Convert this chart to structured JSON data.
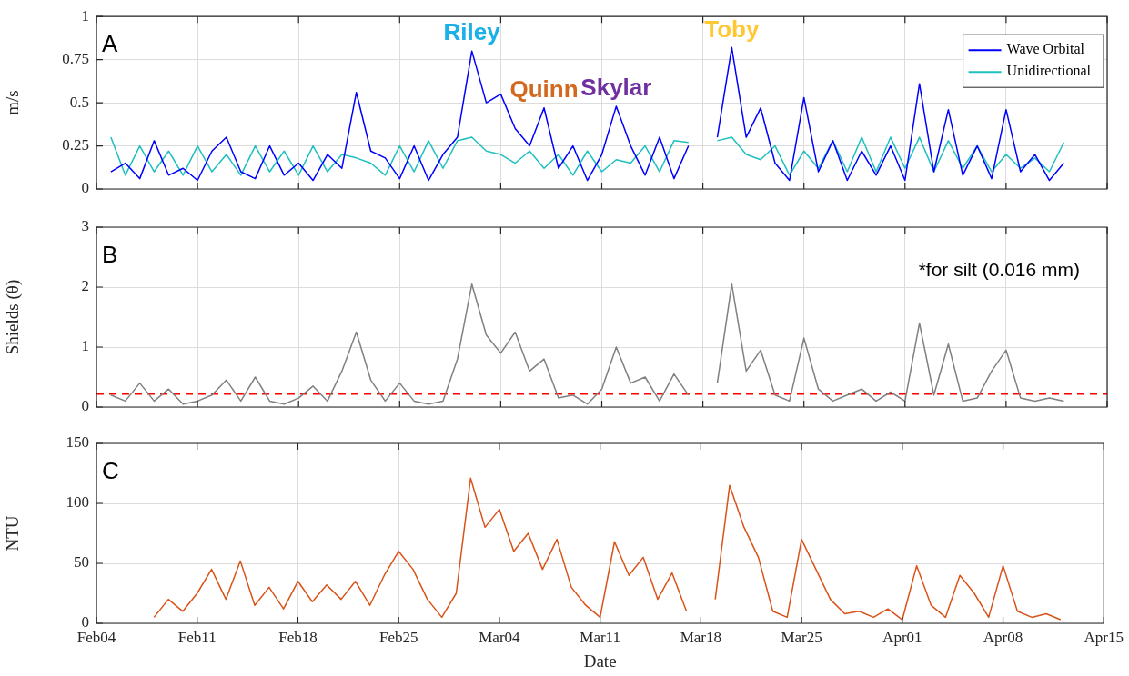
{
  "chart_data": [
    {
      "type": "line",
      "ylabel": "m/s",
      "x": [
        "--02-05",
        "--02-06",
        "--02-07",
        "--02-08",
        "--02-09",
        "--02-10",
        "--02-11",
        "--02-12",
        "--02-13",
        "--02-14",
        "--02-15",
        "--02-16",
        "--02-17",
        "--02-18",
        "--02-19",
        "--02-20",
        "--02-21",
        "--02-22",
        "--02-23",
        "--02-24",
        "--02-25",
        "--02-26",
        "--02-27",
        "--02-28",
        "--03-01",
        "--03-02",
        "--03-03",
        "--03-04",
        "--03-05",
        "--03-06",
        "--03-07",
        "--03-08",
        "--03-09",
        "--03-10",
        "--03-11",
        "--03-12",
        "--03-13",
        "--03-14",
        "--03-15",
        "--03-16",
        "--03-17",
        "--03-18",
        "--03-19",
        "--03-20",
        "--03-21",
        "--03-22",
        "--03-23",
        "--03-24",
        "--03-25",
        "--03-26",
        "--03-27",
        "--03-28",
        "--03-29",
        "--03-30",
        "--03-31",
        "--04-01",
        "--04-02",
        "--04-03",
        "--04-04",
        "--04-05",
        "--04-06",
        "--04-07",
        "--04-08",
        "--04-09",
        "--04-10",
        "--04-11",
        "--04-12"
      ],
      "series": [
        {
          "name": "Wave Orbital",
          "color": "#0000ff",
          "values": [
            0.1,
            0.15,
            0.06,
            0.28,
            0.08,
            0.12,
            0.05,
            0.22,
            0.3,
            0.1,
            0.06,
            0.25,
            0.08,
            0.15,
            0.05,
            0.2,
            0.12,
            0.56,
            0.22,
            0.18,
            0.06,
            0.25,
            0.05,
            0.2,
            0.3,
            0.8,
            0.5,
            0.55,
            0.35,
            0.25,
            0.47,
            0.12,
            0.25,
            0.05,
            0.2,
            0.48,
            0.25,
            0.08,
            0.3,
            0.06,
            0.25,
            null,
            0.3,
            0.82,
            0.3,
            0.47,
            0.15,
            0.05,
            0.53,
            0.1,
            0.28,
            0.05,
            0.22,
            0.08,
            0.25,
            0.05,
            0.61,
            0.1,
            0.46,
            0.08,
            0.25,
            0.06,
            0.46,
            0.1,
            0.2,
            0.05,
            0.15
          ]
        },
        {
          "name": "Unidirectional",
          "color": "#20bfbf",
          "values": [
            0.3,
            0.08,
            0.25,
            0.1,
            0.22,
            0.08,
            0.25,
            0.1,
            0.2,
            0.08,
            0.25,
            0.1,
            0.22,
            0.08,
            0.25,
            0.1,
            0.2,
            0.18,
            0.15,
            0.08,
            0.25,
            0.1,
            0.28,
            0.12,
            0.28,
            0.3,
            0.22,
            0.2,
            0.15,
            0.22,
            0.12,
            0.2,
            0.08,
            0.22,
            0.1,
            0.17,
            0.15,
            0.25,
            0.1,
            0.28,
            0.27,
            null,
            0.28,
            0.3,
            0.2,
            0.17,
            0.25,
            0.08,
            0.22,
            0.12,
            0.28,
            0.1,
            0.3,
            0.1,
            0.3,
            0.12,
            0.3,
            0.1,
            0.28,
            0.12,
            0.25,
            0.1,
            0.2,
            0.12,
            0.18,
            0.1,
            0.27
          ]
        }
      ],
      "xlim": [
        "--02-04",
        "--04-15"
      ],
      "xticks": [
        {
          "value": "--02-04",
          "label": null
        },
        {
          "value": "--02-11",
          "label": null
        },
        {
          "value": "--02-18",
          "label": null
        },
        {
          "value": "--02-25",
          "label": null
        },
        {
          "value": "--03-04",
          "label": null
        },
        {
          "value": "--03-11",
          "label": null
        },
        {
          "value": "--03-18",
          "label": null
        },
        {
          "value": "--03-25",
          "label": null
        },
        {
          "value": "--04-01",
          "label": null
        },
        {
          "value": "--04-08",
          "label": null
        },
        {
          "value": "--04-15",
          "label": null
        }
      ],
      "ylim": [
        0,
        1
      ],
      "yticks": [
        0,
        0.25,
        0.5,
        0.75,
        1
      ],
      "grid": true,
      "legend": "top right",
      "tick_labels": "y",
      "annotations": [
        "A",
        {
          "text": "Riley",
          "x": "--03-02",
          "y": 0.8
        },
        {
          "text": "Quinn",
          "x": "--03-07",
          "y": 0.47
        },
        {
          "text": "Skylar",
          "x": "--03-12",
          "y": 0.48
        },
        {
          "text": "Toby",
          "x": "--03-20",
          "y": 0.82
        }
      ]
    },
    {
      "type": "line",
      "ylabel": "Shields (θ)",
      "x": [
        "--02-05",
        "--02-06",
        "--02-07",
        "--02-08",
        "--02-09",
        "--02-10",
        "--02-11",
        "--02-12",
        "--02-13",
        "--02-14",
        "--02-15",
        "--02-16",
        "--02-17",
        "--02-18",
        "--02-19",
        "--02-20",
        "--02-21",
        "--02-22",
        "--02-23",
        "--02-24",
        "--02-25",
        "--02-26",
        "--02-27",
        "--02-28",
        "--03-01",
        "--03-02",
        "--03-03",
        "--03-04",
        "--03-05",
        "--03-06",
        "--03-07",
        "--03-08",
        "--03-09",
        "--03-10",
        "--03-11",
        "--03-12",
        "--03-13",
        "--03-14",
        "--03-15",
        "--03-16",
        "--03-17",
        "--03-18",
        "--03-19",
        "--03-20",
        "--03-21",
        "--03-22",
        "--03-23",
        "--03-24",
        "--03-25",
        "--03-26",
        "--03-27",
        "--03-28",
        "--03-29",
        "--03-30",
        "--03-31",
        "--04-01",
        "--04-02",
        "--04-03",
        "--04-04",
        "--04-05",
        "--04-06",
        "--04-07",
        "--04-08",
        "--04-09",
        "--04-10",
        "--04-11",
        "--04-12"
      ],
      "series": [
        {
          "color": "#808080",
          "values": [
            0.2,
            0.1,
            0.4,
            0.1,
            0.3,
            0.05,
            0.1,
            0.2,
            0.45,
            0.1,
            0.5,
            0.1,
            0.05,
            0.15,
            0.35,
            0.1,
            0.6,
            1.25,
            0.45,
            0.1,
            0.4,
            0.1,
            0.05,
            0.1,
            0.8,
            2.05,
            1.2,
            0.9,
            1.25,
            0.6,
            0.8,
            0.15,
            0.2,
            0.05,
            0.3,
            1.0,
            0.4,
            0.5,
            0.1,
            0.55,
            0.2,
            null,
            0.4,
            2.05,
            0.6,
            0.95,
            0.2,
            0.1,
            1.15,
            0.3,
            0.1,
            0.2,
            0.3,
            0.1,
            0.25,
            0.1,
            1.4,
            0.2,
            1.05,
            0.1,
            0.15,
            0.6,
            0.95,
            0.15,
            0.1,
            0.15,
            0.1
          ]
        }
      ],
      "xlim": [
        "--02-04",
        "--04-15"
      ],
      "xticks": [
        {
          "value": "--02-04",
          "label": null
        },
        {
          "value": "--02-11",
          "label": null
        },
        {
          "value": "--02-18",
          "label": null
        },
        {
          "value": "--02-25",
          "label": null
        },
        {
          "value": "--03-04",
          "label": null
        },
        {
          "value": "--03-11",
          "label": null
        },
        {
          "value": "--03-18",
          "label": null
        },
        {
          "value": "--03-25",
          "label": null
        },
        {
          "value": "--04-01",
          "label": null
        },
        {
          "value": "--04-08",
          "label": null
        },
        {
          "value": "--04-15",
          "label": null
        }
      ],
      "ylim": [
        0,
        3
      ],
      "yticks": [
        0,
        1,
        2,
        3
      ],
      "grid": true,
      "tick_labels": "y",
      "ref_lines": [
        {
          "axis": "y",
          "value": 0.22,
          "color": "#ff0000",
          "line_style": "dashed"
        }
      ],
      "annotations": [
        "B",
        "*for silt (0.016 mm)"
      ]
    },
    {
      "type": "line",
      "ylabel": "NTU",
      "xlabel": "Date",
      "x": [
        "--02-08",
        "--02-09",
        "--02-10",
        "--02-11",
        "--02-12",
        "--02-13",
        "--02-14",
        "--02-15",
        "--02-16",
        "--02-17",
        "--02-18",
        "--02-19",
        "--02-20",
        "--02-21",
        "--02-22",
        "--02-23",
        "--02-24",
        "--02-25",
        "--02-26",
        "--02-27",
        "--02-28",
        "--03-01",
        "--03-02",
        "--03-03",
        "--03-04",
        "--03-05",
        "--03-06",
        "--03-07",
        "--03-08",
        "--03-09",
        "--03-10",
        "--03-11",
        "--03-12",
        "--03-13",
        "--03-14",
        "--03-15",
        "--03-16",
        "--03-17",
        "--03-18",
        "--03-19",
        "--03-20",
        "--03-21",
        "--03-22",
        "--03-23",
        "--03-24",
        "--03-25",
        "--03-26",
        "--03-27",
        "--03-28",
        "--03-29",
        "--03-30",
        "--03-31",
        "--04-01",
        "--04-02",
        "--04-03",
        "--04-04",
        "--04-05",
        "--04-06",
        "--04-07",
        "--04-08",
        "--04-09",
        "--04-10",
        "--04-11",
        "--04-12"
      ],
      "series": [
        {
          "color": "#d95319",
          "values": [
            5,
            20,
            10,
            25,
            45,
            20,
            52,
            15,
            30,
            12,
            35,
            18,
            32,
            20,
            35,
            15,
            40,
            60,
            45,
            20,
            5,
            25,
            121,
            80,
            95,
            60,
            75,
            45,
            70,
            30,
            15,
            5,
            68,
            40,
            55,
            20,
            42,
            10,
            null,
            20,
            115,
            80,
            55,
            10,
            5,
            70,
            45,
            20,
            8,
            10,
            5,
            12,
            3,
            48,
            15,
            5,
            40,
            25,
            5,
            48,
            10,
            5,
            8,
            3
          ]
        }
      ],
      "xlim": [
        "--02-04",
        "--04-15"
      ],
      "xticks": [
        {
          "value": "--02-04",
          "label": "Feb04"
        },
        {
          "value": "--02-11",
          "label": "Feb11"
        },
        {
          "value": "--02-18",
          "label": "Feb18"
        },
        {
          "value": "--02-25",
          "label": "Feb25"
        },
        {
          "value": "--03-04",
          "label": "Mar04"
        },
        {
          "value": "--03-11",
          "label": "Mar11"
        },
        {
          "value": "--03-18",
          "label": "Mar18"
        },
        {
          "value": "--03-25",
          "label": "Mar25"
        },
        {
          "value": "--04-01",
          "label": "Apr01"
        },
        {
          "value": "--04-08",
          "label": "Apr08"
        },
        {
          "value": "--04-15",
          "label": "Apr15"
        }
      ],
      "ylim": [
        0,
        150
      ],
      "yticks": [
        0,
        50,
        100,
        150
      ],
      "grid": true,
      "annotations": [
        "C"
      ]
    }
  ]
}
